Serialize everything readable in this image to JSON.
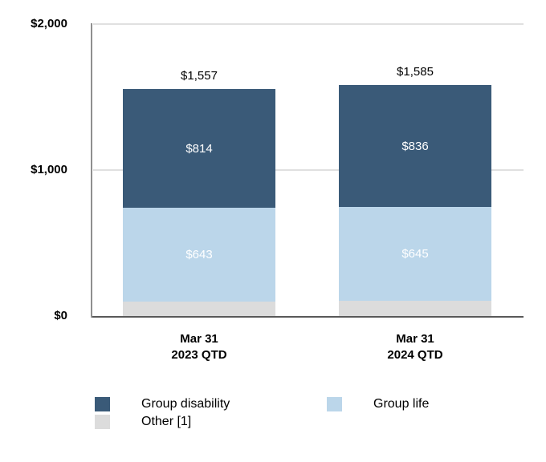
{
  "chart_data": {
    "type": "bar",
    "stacked": true,
    "title": "",
    "ylim": [
      0,
      2000
    ],
    "grid": "horizontal",
    "legend_position": "bottom",
    "yticks": [
      {
        "value": 2000,
        "label": "$2,000"
      },
      {
        "value": 1000,
        "label": "$1,000"
      },
      {
        "value": 0,
        "label": "$0"
      }
    ],
    "categories": [
      {
        "lines": [
          "Mar 31",
          "2023 QTD"
        ]
      },
      {
        "lines": [
          "Mar 31",
          "2024 QTD"
        ]
      }
    ],
    "series": [
      {
        "name": "Other [1]",
        "key": "other",
        "color": "#dcdcdc",
        "values": [
          100,
          104
        ],
        "labels": [
          "",
          ""
        ],
        "label_color": "#ffffff"
      },
      {
        "name": "Group life",
        "key": "group-life",
        "color": "#bbd6ea",
        "values": [
          643,
          645
        ],
        "labels": [
          "$643",
          "$645"
        ],
        "label_color": "#ffffff"
      },
      {
        "name": "Group disability",
        "key": "group-disability",
        "color": "#3a5a78",
        "values": [
          814,
          836
        ],
        "labels": [
          "$814",
          "$836"
        ],
        "label_color": "#ffffff"
      }
    ],
    "totals": {
      "values": [
        1557,
        1585
      ],
      "labels": [
        "$1,557",
        "$1,585"
      ]
    },
    "legend": [
      {
        "label": "Group disability",
        "key": "group-disability",
        "color": "#3a5a78",
        "col": 0,
        "row": 0
      },
      {
        "label": "Other [1]",
        "key": "other",
        "color": "#dcdcdc",
        "col": 0,
        "row": 1
      },
      {
        "label": "Group life",
        "key": "group-life",
        "color": "#bbd6ea",
        "col": 1,
        "row": 0
      }
    ]
  },
  "colors": {
    "background": "#ffffff",
    "gridline": "#e0e0e0",
    "y_axis_line": "#8f8f8f",
    "x_axis_line": "#595959",
    "text": "#000000"
  }
}
